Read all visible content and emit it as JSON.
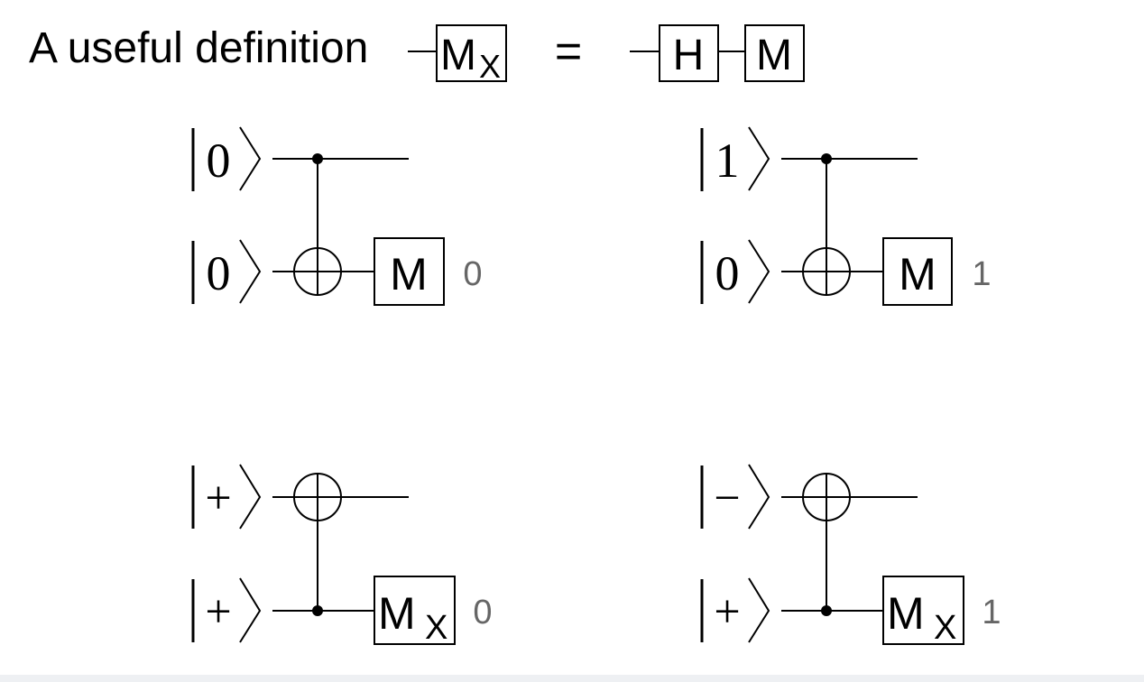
{
  "definition": {
    "title": "A useful definition",
    "lhs_gate": "M",
    "lhs_sub": "X",
    "equals": "=",
    "rhs_gates": [
      "H",
      "M"
    ]
  },
  "circuits": [
    {
      "name": "circuit-zero-zero",
      "top_ket": "0",
      "bottom_ket": "0",
      "gate": "M",
      "gate_sub": "",
      "outcome": "0"
    },
    {
      "name": "circuit-one-zero",
      "top_ket": "1",
      "bottom_ket": "0",
      "gate": "M",
      "gate_sub": "",
      "outcome": "1"
    },
    {
      "name": "circuit-plus-plus",
      "top_ket": "+",
      "bottom_ket": "+",
      "gate": "M",
      "gate_sub": "X",
      "outcome": "0"
    },
    {
      "name": "circuit-minus-plus",
      "top_ket": "−",
      "bottom_ket": "+",
      "gate": "M",
      "gate_sub": "X",
      "outcome": "1"
    }
  ],
  "colors": {
    "line": "#000000",
    "outcome_text": "#666666"
  }
}
